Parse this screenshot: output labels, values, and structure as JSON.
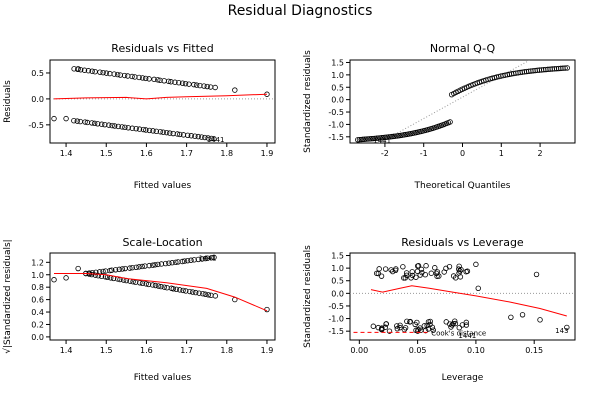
{
  "figure_title": "Residual Diagnostics",
  "colors": {
    "points": "#000000",
    "smooth": "#ff0000",
    "reference": "#999999",
    "cooks": "#ff0000"
  },
  "chart_data": [
    {
      "type": "scatter",
      "title": "Residuals vs Fitted",
      "xlabel": "Fitted values",
      "ylabel": "Residuals",
      "xlim": [
        1.36,
        1.92
      ],
      "ylim": [
        -0.85,
        0.75
      ],
      "x_ticks": [
        "1.4",
        "1.5",
        "1.6",
        "1.7",
        "1.8",
        "1.9"
      ],
      "y_ticks": [
        "-0.5",
        "0.0",
        "0.5"
      ],
      "reference_line": {
        "y": 0,
        "style": "dotted"
      },
      "upper_band": {
        "x_start": 1.42,
        "x_end": 1.77,
        "y_start": 0.58,
        "y_end": 0.22,
        "count": 40
      },
      "lower_band": {
        "x_start": 1.42,
        "x_end": 1.77,
        "y_start": -0.42,
        "y_end": -0.77,
        "count": 42
      },
      "extra_points": [
        [
          1.37,
          -0.38
        ],
        [
          1.4,
          -0.38
        ],
        [
          1.43,
          0.58
        ],
        [
          1.82,
          0.17
        ],
        [
          1.9,
          0.09
        ]
      ],
      "smooth": [
        [
          1.37,
          0.0
        ],
        [
          1.45,
          0.02
        ],
        [
          1.55,
          0.03
        ],
        [
          1.6,
          0.0
        ],
        [
          1.65,
          0.03
        ],
        [
          1.7,
          0.04
        ],
        [
          1.8,
          0.06
        ],
        [
          1.9,
          0.09
        ]
      ],
      "point_labels": [
        {
          "x": 1.75,
          "y": -0.77,
          "text": "1441"
        }
      ]
    },
    {
      "type": "scatter",
      "title": "Normal Q-Q",
      "xlabel": "Theoretical Quantiles",
      "ylabel": "Standardized residuals",
      "xlim": [
        -2.9,
        2.9
      ],
      "ylim": [
        -1.75,
        1.6
      ],
      "x_ticks": [
        "-2",
        "-1",
        "0",
        "1",
        "2"
      ],
      "y_ticks": [
        "-1.5",
        "-1.0",
        "-0.5",
        "0.0",
        "0.5",
        "1.0",
        "1.5"
      ],
      "reference_line": {
        "x_start": -2.9,
        "y_start": -2.4,
        "x_end": 2.9,
        "y_end": 2.6,
        "style": "dotted"
      },
      "lower_branch": {
        "x_start": -2.7,
        "x_end": -0.32,
        "y_start": -1.62,
        "y_end": -0.9,
        "count": 55
      },
      "upper_branch": {
        "x_start": -0.28,
        "x_end": 2.7,
        "y_start": 0.2,
        "y_end": 1.28,
        "count": 55
      },
      "point_labels": [
        {
          "x": -2.3,
          "y": -1.62,
          "text": "1441"
        }
      ]
    },
    {
      "type": "scatter",
      "title": "Scale-Location",
      "xlabel": "Fitted values",
      "ylabel": "√|Standardized residuals|",
      "xlim": [
        1.36,
        1.92
      ],
      "ylim": [
        -0.05,
        1.35
      ],
      "x_ticks": [
        "1.4",
        "1.5",
        "1.6",
        "1.7",
        "1.8",
        "1.9"
      ],
      "y_ticks": [
        "0.0",
        "0.2",
        "0.4",
        "0.6",
        "0.8",
        "1.0",
        "1.2"
      ],
      "upper_band": {
        "x_start": 1.45,
        "x_end": 1.77,
        "y_start": 1.02,
        "y_end": 1.28,
        "count": 40
      },
      "lower_band": {
        "x_start": 1.45,
        "x_end": 1.77,
        "y_start": 1.02,
        "y_end": 0.66,
        "count": 42
      },
      "extra_points": [
        [
          1.37,
          0.92
        ],
        [
          1.4,
          0.95
        ],
        [
          1.43,
          1.1
        ],
        [
          1.82,
          0.6
        ],
        [
          1.9,
          0.44
        ]
      ],
      "smooth": [
        [
          1.37,
          1.02
        ],
        [
          1.45,
          1.02
        ],
        [
          1.5,
          1.0
        ],
        [
          1.55,
          0.94
        ],
        [
          1.65,
          0.87
        ],
        [
          1.75,
          0.78
        ],
        [
          1.82,
          0.64
        ],
        [
          1.9,
          0.42
        ]
      ],
      "point_labels": [
        {
          "x": 1.73,
          "y": 1.28,
          "text": "1441"
        }
      ]
    },
    {
      "type": "scatter",
      "title": "Residuals vs Leverage",
      "xlabel": "Leverage",
      "ylabel": "Standardized residuals",
      "xlim": [
        -0.008,
        0.185
      ],
      "ylim": [
        -1.85,
        1.6
      ],
      "x_ticks": [
        "0.00",
        "0.05",
        "0.10",
        "0.15"
      ],
      "y_ticks": [
        "-1.5",
        "-1.0",
        "-0.5",
        "0.0",
        "0.5",
        "1.0",
        "1.5"
      ],
      "reference_line": {
        "y": 0,
        "style": "dotted"
      },
      "upper_cloud": {
        "x_start": 0.012,
        "x_end": 0.095,
        "y_center": 0.85,
        "spread": 0.25,
        "count": 45
      },
      "lower_cloud": {
        "x_start": 0.012,
        "x_end": 0.095,
        "y_center": -1.3,
        "spread": 0.2,
        "count": 45
      },
      "extra_points": [
        [
          0.1,
          1.15
        ],
        [
          0.102,
          0.2
        ],
        [
          0.13,
          -0.95
        ],
        [
          0.152,
          0.75
        ],
        [
          0.155,
          -1.05
        ],
        [
          0.178,
          -1.35
        ],
        [
          0.14,
          -0.85
        ]
      ],
      "smooth": [
        [
          0.01,
          0.15
        ],
        [
          0.02,
          0.05
        ],
        [
          0.035,
          0.2
        ],
        [
          0.045,
          0.3
        ],
        [
          0.06,
          0.2
        ],
        [
          0.08,
          0.05
        ],
        [
          0.1,
          -0.1
        ],
        [
          0.13,
          -0.35
        ],
        [
          0.155,
          -0.6
        ],
        [
          0.178,
          -0.9
        ]
      ],
      "cooks_line": {
        "x_start": -0.005,
        "x_end": 0.06,
        "y": -1.55
      },
      "cooks_label": "Cook's distance",
      "point_labels": [
        {
          "x": 0.085,
          "y": -1.65,
          "text": "1441"
        },
        {
          "x": 0.168,
          "y": -1.45,
          "text": "143"
        }
      ]
    }
  ]
}
